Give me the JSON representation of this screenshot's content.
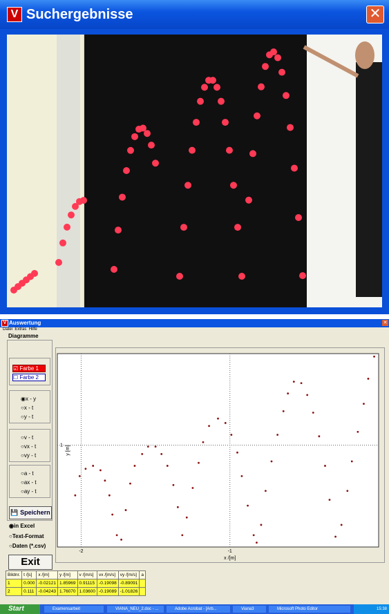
{
  "search_window": {
    "title": "Suchergebnisse"
  },
  "eval_window": {
    "title": "Auswertung",
    "menu": [
      "Datei",
      "Extras",
      "Hilfe"
    ],
    "group_title": "Diagramme",
    "colors": [
      "Farbe 1",
      "Farbe 2"
    ],
    "radio_groups": [
      [
        "x - y",
        "x - t",
        "y - t"
      ],
      [
        "v - t",
        "vx - t",
        "vy - t"
      ],
      [
        "a - t",
        "ax - t",
        "ay - t"
      ]
    ],
    "save_button": "Speichern",
    "save_options": [
      "in Excel",
      "Text-Format",
      "Daten (*.csv)"
    ],
    "exit_button": "Exit"
  },
  "plot": {
    "type": "scatter",
    "x_label": "x /[m]",
    "y_label": "y [m]",
    "color": "#8b1010",
    "xlim": [
      -2.16,
      0.0
    ],
    "ylim": [
      0.31,
      1.62
    ],
    "xticks": [
      -2,
      -1
    ],
    "yticks": [
      1
    ],
    "grid": true,
    "x": [
      -2.04,
      -2.01,
      -1.97,
      -1.92,
      -1.87,
      -1.84,
      -1.81,
      -1.79,
      -1.76,
      -1.73,
      -1.7,
      -1.67,
      -1.64,
      -1.59,
      -1.55,
      -1.5,
      -1.46,
      -1.42,
      -1.38,
      -1.35,
      -1.32,
      -1.29,
      -1.25,
      -1.21,
      -1.18,
      -1.14,
      -1.08,
      -1.03,
      -0.99,
      -0.95,
      -0.92,
      -0.88,
      -0.84,
      -0.82,
      -0.79,
      -0.76,
      -0.72,
      -0.68,
      -0.64,
      -0.61,
      -0.57,
      -0.52,
      -0.48,
      -0.44,
      -0.4,
      -0.36,
      -0.33,
      -0.29,
      -0.25,
      -0.21,
      -0.18,
      -0.14,
      -0.1,
      -0.07,
      -0.03
    ],
    "y": [
      0.66,
      0.79,
      0.84,
      0.86,
      0.83,
      0.76,
      0.66,
      0.53,
      0.39,
      0.36,
      0.56,
      0.74,
      0.86,
      0.94,
      0.99,
      0.99,
      0.94,
      0.86,
      0.73,
      0.58,
      0.39,
      0.51,
      0.71,
      0.88,
      1.02,
      1.13,
      1.18,
      1.15,
      1.07,
      0.95,
      0.79,
      0.59,
      0.39,
      0.34,
      0.46,
      0.69,
      0.89,
      1.07,
      1.23,
      1.35,
      1.43,
      1.42,
      1.34,
      1.22,
      1.06,
      0.86,
      0.63,
      0.38,
      0.46,
      0.69,
      0.89,
      1.09,
      1.28,
      1.45,
      1.6
    ]
  },
  "table": {
    "header": [
      "Bildnr.",
      "t /[s]",
      "x /[m]",
      "y /[m]",
      "v /[m/s]",
      "vx /[m/s]",
      "vy /[m/s]",
      "a"
    ],
    "rows": [
      [
        "1",
        "0.000",
        "-0.02121",
        "1.85969",
        "0.91115",
        "-0.19098",
        "-0.89091",
        ""
      ],
      [
        "2",
        "0.111",
        "-0.04243",
        "1.76070",
        "1.03600",
        "-0.19089",
        "-1.01826",
        ""
      ]
    ]
  },
  "taskbar": {
    "start": "Start",
    "items": [
      "Examensarbeit",
      "VIANA_NEU_2.doc - ...",
      "Adobe Acrobat - [Arb...",
      "Viana3",
      "Microsoft Photo Editor"
    ],
    "clock": "15:38"
  }
}
